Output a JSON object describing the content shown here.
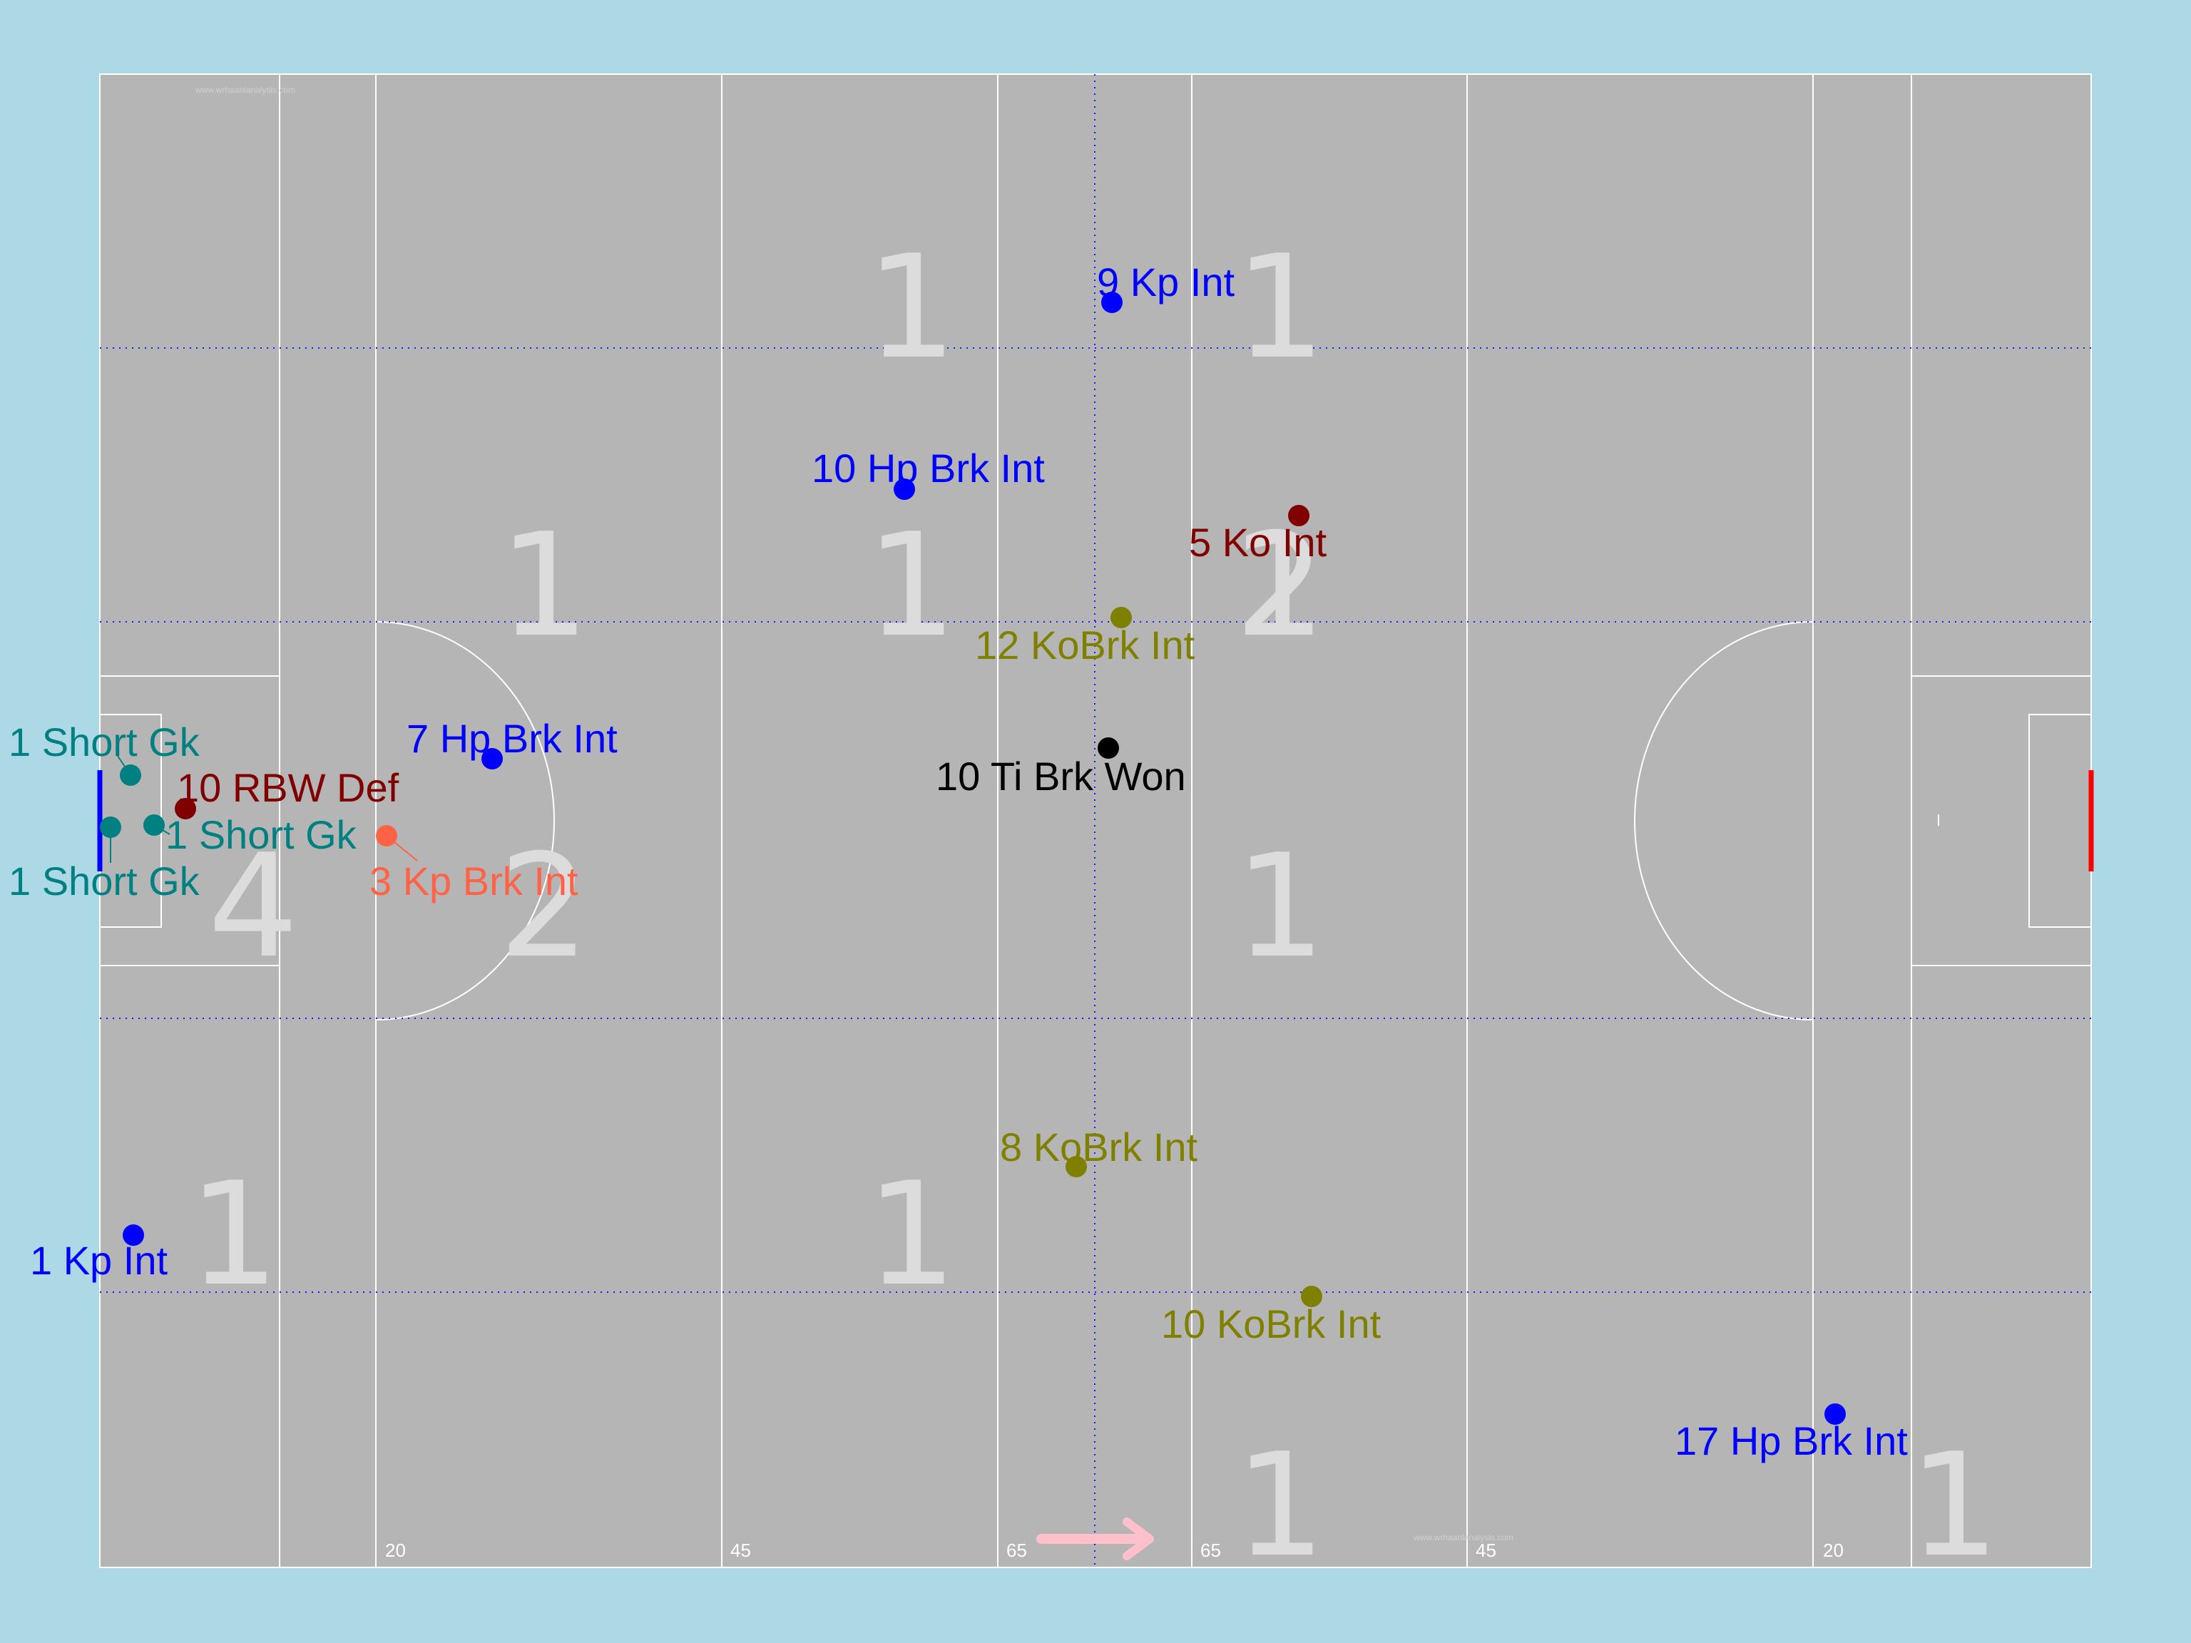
{
  "watermark": "www.wrhaanlanalysis.com",
  "distance_markers": [
    "20",
    "45",
    "65",
    "65",
    "45",
    "20"
  ],
  "zone_counts": [
    "1",
    "1",
    "1",
    "1",
    "1",
    "2",
    "4",
    "2",
    "1",
    "1",
    "1",
    "1",
    "1"
  ],
  "colors": {
    "background": "#add8e6",
    "pitch": "#b5b5b5",
    "lines": "#ffffff",
    "grid": "#1a1aff",
    "zone_number": "#dcdcdc",
    "own_goal": "#0000ff",
    "opp_goal": "#ff0000",
    "arrow": "#ffc0cb"
  },
  "direction_icon": "arrow-right-icon",
  "events": [
    {
      "label": "9 Kp Int",
      "color": "#0000ff"
    },
    {
      "label": "10 Hp Brk Int",
      "color": "#0000ff"
    },
    {
      "label": "5 Ko Int",
      "color": "#800000"
    },
    {
      "label": "12 KoBrk Int",
      "color": "#808000"
    },
    {
      "label": "10 Ti Brk Won",
      "color": "#000000"
    },
    {
      "label": "7 Hp Brk Int",
      "color": "#0000ff"
    },
    {
      "label": "1 Short Gk",
      "color": "#008080"
    },
    {
      "label": "10 RBW Def",
      "color": "#800000"
    },
    {
      "label": "1 Short Gk",
      "color": "#008080"
    },
    {
      "label": "1 Short Gk",
      "color": "#008080"
    },
    {
      "label": "3 Kp Brk Int",
      "color": "#ff6347"
    },
    {
      "label": "8 KoBrk Int",
      "color": "#808000"
    },
    {
      "label": "1 Kp Int",
      "color": "#0000ff"
    },
    {
      "label": "10 KoBrk Int",
      "color": "#808000"
    },
    {
      "label": "17 Hp Brk Int",
      "color": "#0000ff"
    }
  ]
}
